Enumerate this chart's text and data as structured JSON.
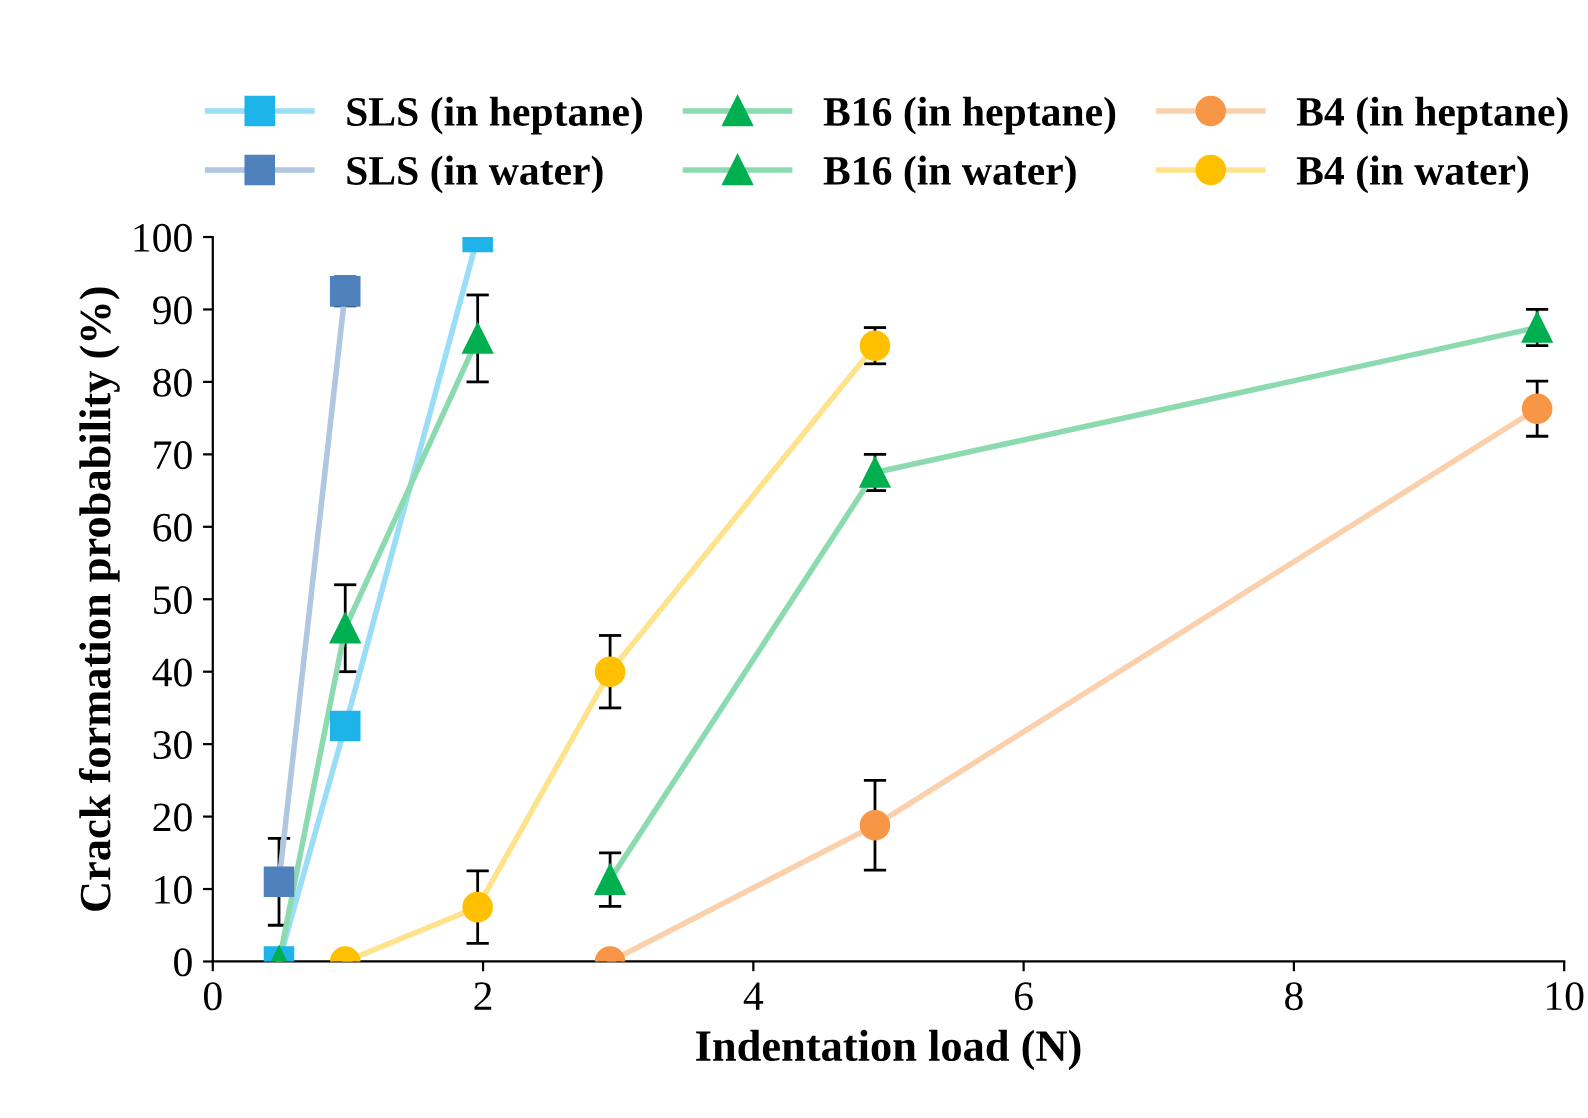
{
  "chart_data": {
    "type": "line",
    "xlabel": "Indentation load (N)",
    "ylabel": "Crack formation probability (%)",
    "xlim": [
      0,
      10
    ],
    "xticks": [
      0,
      2,
      4,
      6,
      8,
      10
    ],
    "ylim": [
      0,
      100
    ],
    "yticks": [
      0,
      10,
      20,
      30,
      40,
      50,
      60,
      70,
      80,
      90,
      100
    ],
    "grid": false,
    "legend": "top",
    "series": [
      {
        "name": "SLS (in heptane)",
        "color": "#1eb4ea",
        "marker": "square",
        "x": [
          0.49,
          0.98,
          1.96
        ],
        "values": [
          0,
          32.5,
          100
        ],
        "errors": [
          null,
          null,
          null
        ]
      },
      {
        "name": "B16 (in heptane)",
        "color": "#00b050",
        "marker": "triangle",
        "x": [
          2.94,
          4.9,
          9.8
        ],
        "values": [
          11.3,
          67.5,
          87.5
        ],
        "errors": [
          3.7,
          2.5,
          2.5
        ]
      },
      {
        "name": "B4 (in heptane)",
        "color": "#f79646",
        "marker": "circle",
        "x": [
          2.94,
          4.9,
          9.8
        ],
        "values": [
          0,
          18.8,
          76.3
        ],
        "errors": [
          null,
          6.2,
          3.8
        ]
      },
      {
        "name": "SLS (in water)",
        "color": "#4f81bd",
        "marker": "square",
        "x": [
          0.49,
          0.98
        ],
        "values": [
          11,
          92.5
        ],
        "errors": [
          6,
          2
        ]
      },
      {
        "name": "B16 (in water)",
        "color": "#00b050",
        "marker": "triangle",
        "x": [
          0.49,
          0.98,
          1.96
        ],
        "values": [
          0,
          46,
          86
        ],
        "errors": [
          null,
          6,
          6
        ]
      },
      {
        "name": "B4 (in water)",
        "color": "#ffc000",
        "marker": "circle",
        "x": [
          0.98,
          1.96,
          2.94,
          4.9
        ],
        "values": [
          0,
          7.5,
          40,
          85
        ],
        "errors": [
          null,
          5,
          5,
          2.5
        ]
      }
    ]
  }
}
